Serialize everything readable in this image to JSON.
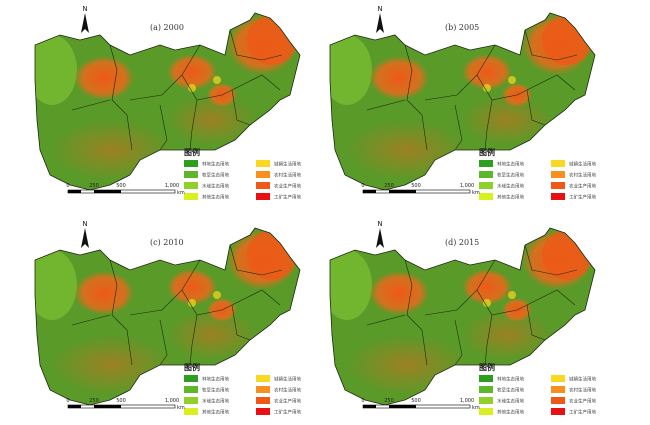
{
  "panels": [
    {
      "title": "(a) 2000"
    },
    {
      "title": "(b) 2005"
    },
    {
      "title": "(c) 2010"
    },
    {
      "title": "(d) 2015"
    }
  ],
  "north_label": "N",
  "legend": {
    "title": "图例",
    "items": [
      {
        "label": "林地生态用地",
        "color": "#2e9e1e"
      },
      {
        "label": "牧草生态用地",
        "color": "#5cb82a"
      },
      {
        "label": "水域生态用地",
        "color": "#90d02a"
      },
      {
        "label": "其他生态用地",
        "color": "#d8f020"
      },
      {
        "label": "城镇生活用地",
        "color": "#f8d820"
      },
      {
        "label": "农村生活用地",
        "color": "#f89020"
      },
      {
        "label": "农业生产用地",
        "color": "#f05818"
      },
      {
        "label": "工矿生产用地",
        "color": "#e81010"
      }
    ]
  },
  "scale_bar": {
    "ticks": [
      "0",
      "250",
      "500",
      "1,000"
    ],
    "unit": "km"
  }
}
